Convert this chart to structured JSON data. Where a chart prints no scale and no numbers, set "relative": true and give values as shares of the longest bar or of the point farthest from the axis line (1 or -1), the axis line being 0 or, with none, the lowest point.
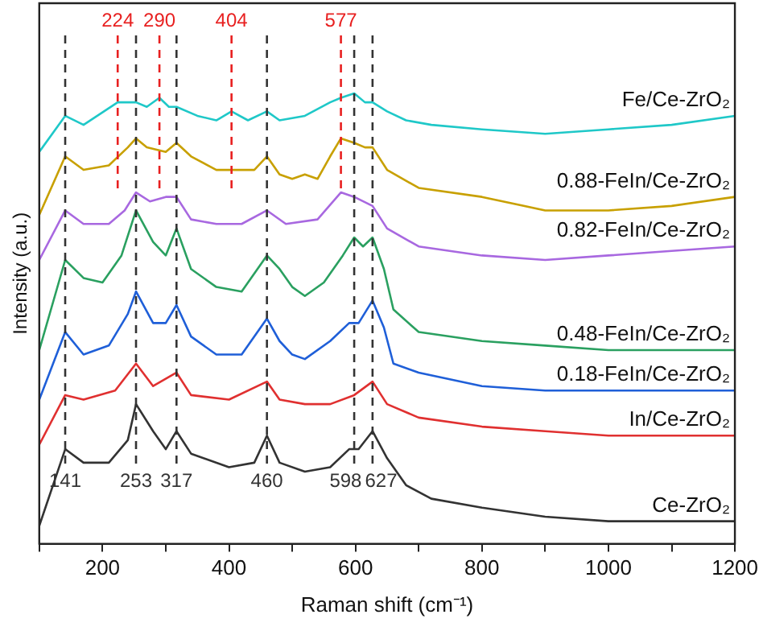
{
  "chart_data": {
    "type": "line",
    "xlabel": "Raman shift (cm⁻¹)",
    "ylabel": "Intensity (a.u.)",
    "relative": true,
    "xlim": [
      100,
      1200
    ],
    "xticks": [
      {
        "value": 100,
        "label": null
      },
      200,
      {
        "value": 300,
        "label": null
      },
      400,
      {
        "value": 500,
        "label": null
      },
      600,
      {
        "value": 700,
        "label": null
      },
      800,
      {
        "value": 900,
        "label": null
      },
      1000,
      {
        "value": 1100,
        "label": null
      },
      1200
    ],
    "tick_labels": "x",
    "grid": false,
    "legend": false,
    "marker": "none",
    "line_style": "solid",
    "series": [
      {
        "name": "Fe/Ce-ZrO₂",
        "color": "#1fc8c8",
        "x": [
          100,
          141,
          170,
          224,
          253,
          270,
          290,
          305,
          317,
          350,
          380,
          404,
          430,
          460,
          480,
          520,
          560,
          577,
          598,
          615,
          627,
          650,
          680,
          720,
          800,
          900,
          1000,
          1100,
          1200
        ],
        "values": [
          0.87,
          0.95,
          0.93,
          0.98,
          0.98,
          0.97,
          0.99,
          0.97,
          0.97,
          0.95,
          0.94,
          0.96,
          0.94,
          0.96,
          0.94,
          0.95,
          0.98,
          0.99,
          1,
          0.98,
          0.98,
          0.96,
          0.94,
          0.93,
          0.92,
          0.91,
          0.92,
          0.93,
          0.95
        ]
      },
      {
        "name": "0.88-FeIn/Ce-ZrO₂",
        "color": "#c8a000",
        "x": [
          100,
          141,
          170,
          210,
          240,
          253,
          270,
          300,
          317,
          340,
          380,
          404,
          440,
          460,
          480,
          500,
          520,
          540,
          560,
          577,
          598,
          615,
          627,
          650,
          700,
          800,
          900,
          1000,
          1100,
          1200
        ],
        "values": [
          0.73,
          0.86,
          0.83,
          0.84,
          0.88,
          0.9,
          0.88,
          0.87,
          0.89,
          0.86,
          0.83,
          0.83,
          0.83,
          0.86,
          0.82,
          0.81,
          0.82,
          0.81,
          0.86,
          0.9,
          0.89,
          0.88,
          0.88,
          0.83,
          0.79,
          0.77,
          0.74,
          0.74,
          0.75,
          0.77
        ]
      },
      {
        "name": "0.82-FeIn/Ce-ZrO₂",
        "color": "#a868e0",
        "x": [
          100,
          141,
          170,
          210,
          235,
          253,
          275,
          300,
          317,
          340,
          380,
          420,
          460,
          490,
          540,
          577,
          598,
          627,
          650,
          700,
          800,
          900,
          1000,
          1100,
          1200
        ],
        "values": [
          0.63,
          0.74,
          0.71,
          0.71,
          0.74,
          0.78,
          0.76,
          0.77,
          0.77,
          0.72,
          0.71,
          0.71,
          0.74,
          0.71,
          0.72,
          0.78,
          0.77,
          0.75,
          0.7,
          0.66,
          0.64,
          0.63,
          0.64,
          0.65,
          0.66
        ]
      },
      {
        "name": "0.48-FeIn/Ce-ZrO₂",
        "color": "#2aa060",
        "x": [
          100,
          141,
          170,
          200,
          230,
          253,
          280,
          300,
          317,
          340,
          380,
          420,
          460,
          480,
          500,
          520,
          550,
          580,
          598,
          612,
          627,
          645,
          660,
          700,
          800,
          900,
          1000,
          1200
        ],
        "values": [
          0.43,
          0.63,
          0.59,
          0.58,
          0.64,
          0.74,
          0.67,
          0.64,
          0.7,
          0.61,
          0.57,
          0.56,
          0.64,
          0.61,
          0.57,
          0.55,
          0.58,
          0.64,
          0.68,
          0.66,
          0.68,
          0.61,
          0.52,
          0.47,
          0.45,
          0.44,
          0.43,
          0.43
        ]
      },
      {
        "name": "0.18-FeIn/Ce-ZrO₂",
        "color": "#1f5fd8",
        "x": [
          100,
          141,
          170,
          210,
          240,
          253,
          280,
          300,
          317,
          340,
          380,
          420,
          460,
          480,
          500,
          520,
          560,
          590,
          605,
          627,
          645,
          660,
          700,
          800,
          900,
          1000,
          1200
        ],
        "values": [
          0.32,
          0.47,
          0.42,
          0.44,
          0.51,
          0.56,
          0.49,
          0.49,
          0.53,
          0.46,
          0.42,
          0.42,
          0.5,
          0.45,
          0.42,
          0.41,
          0.45,
          0.49,
          0.49,
          0.54,
          0.48,
          0.4,
          0.38,
          0.35,
          0.34,
          0.34,
          0.34
        ]
      },
      {
        "name": "In/Ce-ZrO₂",
        "color": "#e03030",
        "x": [
          100,
          141,
          170,
          220,
          253,
          280,
          317,
          340,
          400,
          460,
          480,
          520,
          560,
          598,
          627,
          650,
          700,
          800,
          900,
          1000,
          1200
        ],
        "values": [
          0.22,
          0.33,
          0.32,
          0.34,
          0.4,
          0.35,
          0.38,
          0.33,
          0.32,
          0.36,
          0.32,
          0.31,
          0.31,
          0.33,
          0.36,
          0.31,
          0.28,
          0.26,
          0.25,
          0.24,
          0.24
        ]
      },
      {
        "name": "Ce-ZrO₂",
        "color": "#333333",
        "x": [
          100,
          141,
          170,
          210,
          240,
          253,
          280,
          300,
          317,
          340,
          400,
          440,
          460,
          480,
          520,
          560,
          590,
          605,
          627,
          650,
          680,
          720,
          800,
          900,
          1000,
          1200
        ],
        "values": [
          0.04,
          0.21,
          0.18,
          0.18,
          0.23,
          0.31,
          0.25,
          0.21,
          0.25,
          0.2,
          0.17,
          0.18,
          0.24,
          0.18,
          0.16,
          0.17,
          0.21,
          0.21,
          0.25,
          0.19,
          0.13,
          0.1,
          0.08,
          0.06,
          0.05,
          0.05
        ]
      }
    ],
    "ref_lines": [
      {
        "axis": "x",
        "value": 141,
        "label": "141",
        "color": "#333333",
        "line_style": "dashed"
      },
      {
        "axis": "x",
        "value": 253,
        "label": "253",
        "color": "#333333",
        "line_style": "dashed"
      },
      {
        "axis": "x",
        "value": 317,
        "label": "317",
        "color": "#333333",
        "line_style": "dashed"
      },
      {
        "axis": "x",
        "value": 460,
        "label": "460",
        "color": "#333333",
        "line_style": "dashed"
      },
      {
        "axis": "x",
        "value": 598,
        "label": "598",
        "color": "#333333",
        "line_style": "dashed"
      },
      {
        "axis": "x",
        "value": 627,
        "label": "627",
        "color": "#333333",
        "line_style": "dashed"
      },
      {
        "axis": "x",
        "value": 224,
        "label": "224",
        "color": "#e82020",
        "line_style": "dashed"
      },
      {
        "axis": "x",
        "value": 290,
        "label": "290",
        "color": "#e82020",
        "line_style": "dashed"
      },
      {
        "axis": "x",
        "value": 404,
        "label": "404",
        "color": "#e82020",
        "line_style": "dashed"
      },
      {
        "axis": "x",
        "value": 577,
        "label": "577",
        "color": "#e82020",
        "line_style": "dashed"
      }
    ]
  }
}
